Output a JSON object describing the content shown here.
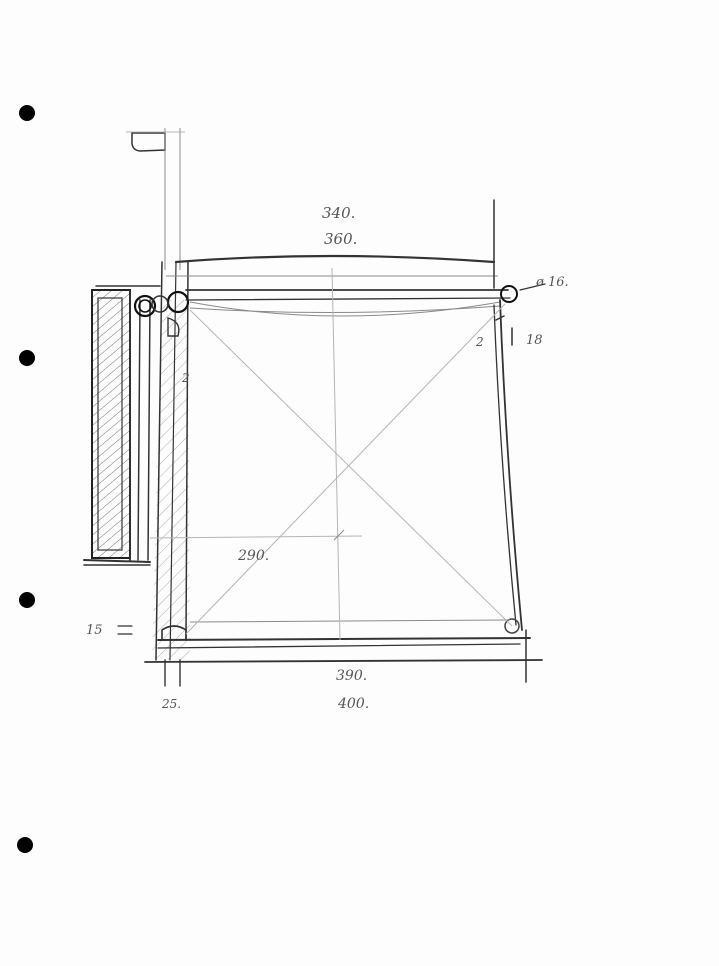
{
  "sheet": {
    "dimensions": {
      "top_inner": "340.",
      "top_outer": "360.",
      "bottom_inner": "390.",
      "bottom_outer": "400.",
      "middle": "290.",
      "left_height": "15",
      "left_width": "25.",
      "gap_left": "2",
      "gap_right": "2",
      "right_offset": "18",
      "pipe_diameter": "ø 16."
    }
  }
}
